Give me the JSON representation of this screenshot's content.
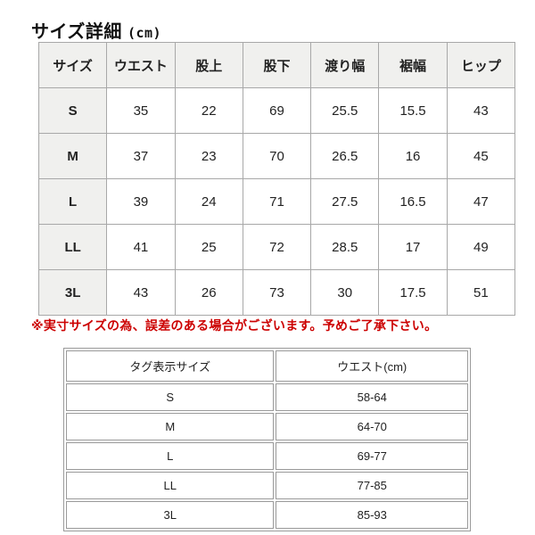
{
  "page": {
    "title": "サイズ詳細",
    "unit": "(cm)"
  },
  "colors": {
    "notice_red": "#cc0000",
    "header_bg": "#f0f0ee",
    "table_border": "#a8a8a8"
  },
  "size_table": {
    "headers": [
      "サイズ",
      "ウエスト",
      "股上",
      "股下",
      "渡り幅",
      "裾幅",
      "ヒップ"
    ],
    "rows": [
      [
        "S",
        "35",
        "22",
        "69",
        "25.5",
        "15.5",
        "43"
      ],
      [
        "M",
        "37",
        "23",
        "70",
        "26.5",
        "16",
        "45"
      ],
      [
        "L",
        "39",
        "24",
        "71",
        "27.5",
        "16.5",
        "47"
      ],
      [
        "LL",
        "41",
        "25",
        "72",
        "28.5",
        "17",
        "49"
      ],
      [
        "3L",
        "43",
        "26",
        "73",
        "30",
        "17.5",
        "51"
      ]
    ]
  },
  "notice": "※実寸サイズの為、誤差のある場合がございます。予めご了承下さい。",
  "tag_table": {
    "headers": [
      "タグ表示サイズ",
      "ウエスト(cm)"
    ],
    "rows": [
      [
        "S",
        "58-64"
      ],
      [
        "M",
        "64-70"
      ],
      [
        "L",
        "69-77"
      ],
      [
        "LL",
        "77-85"
      ],
      [
        "3L",
        "85-93"
      ]
    ]
  }
}
